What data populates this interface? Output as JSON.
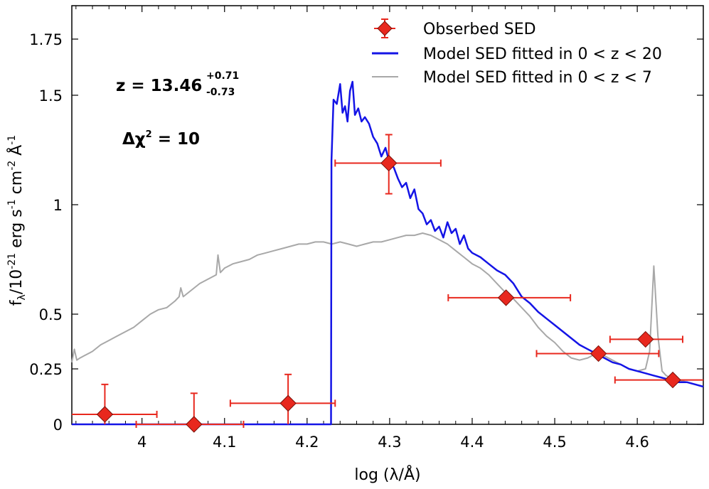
{
  "chart_data": {
    "type": "scatter",
    "xlabel": "log (λ/Å)",
    "ylabel": {
      "base": "f",
      "base_sub": "λ",
      "mid1": "/10",
      "exp1": "-21",
      "mid2": " erg s",
      "exp2": "-1",
      "mid3": " cm",
      "exp3": "-2",
      "mid4": " Å",
      "exp4": "-1"
    },
    "xlim": [
      3.915,
      4.68
    ],
    "ylim": [
      0,
      1.9
    ],
    "xticks": [
      4.0,
      4.1,
      4.2,
      4.3,
      4.4,
      4.5,
      4.6
    ],
    "xtick_labels": [
      "4",
      "4.1",
      "4.2",
      "4.3",
      "4.4",
      "4.5",
      "4.6"
    ],
    "yticks": [
      0,
      0.25,
      0.5,
      1,
      1.5,
      1.75
    ],
    "ytick_labels": [
      "0",
      "0.25",
      "0.5",
      "1",
      "1.5",
      "1.75"
    ],
    "y_scale_note": "nonlinear y axis: tick positions follow the printed labels",
    "yscale_anchor_values": [
      0,
      0.25,
      0.5,
      1,
      1.5,
      1.75
    ],
    "legend": {
      "placement": "top-right",
      "entries": [
        {
          "label": "Obserbed SED",
          "color": "#e8281e",
          "kind": "marker"
        },
        {
          "label": "Model SED fitted in 0 < z < 20",
          "color": "#1414e6",
          "kind": "line"
        },
        {
          "label": "Model SED fitted in 0 < z < 7",
          "color": "#a8a8a8",
          "kind": "line"
        }
      ]
    },
    "annotations": {
      "z_prefix": "z = 13.46",
      "z_plus": "+0.71",
      "z_minus": "-0.73",
      "dchi_prefix": "Δχ",
      "dchi_exp": "2",
      "dchi_value": " = 10"
    },
    "series": [
      {
        "name": "Obserbed SED",
        "color": "#e8281e",
        "points": [
          {
            "x": 3.955,
            "y": 0.045,
            "xerr": [
              0.07,
              0.063
            ],
            "yerr": [
              0.045,
              0.135
            ]
          },
          {
            "x": 4.063,
            "y": 0.0,
            "xerr": [
              0.07,
              0.06
            ],
            "yerr": [
              0.0,
              0.14
            ]
          },
          {
            "x": 4.177,
            "y": 0.095,
            "xerr": [
              0.07,
              0.057
            ],
            "yerr": [
              0.095,
              0.13
            ]
          },
          {
            "x": 4.299,
            "y": 1.19,
            "xerr": [
              0.065,
              0.063
            ],
            "yerr": [
              0.14,
              0.13
            ]
          },
          {
            "x": 4.441,
            "y": 0.575,
            "xerr": [
              0.07,
              0.078
            ],
            "yerr": [
              0,
              0
            ]
          },
          {
            "x": 4.553,
            "y": 0.32,
            "xerr": [
              0.075,
              0.073
            ],
            "yerr": [
              0,
              0
            ]
          },
          {
            "x": 4.61,
            "y": 0.385,
            "xerr": [
              0.043,
              0.045
            ],
            "yerr": [
              0,
              0
            ]
          },
          {
            "x": 4.643,
            "y": 0.2,
            "xerr": [
              0.07,
              0.04
            ],
            "yerr": [
              0,
              0
            ]
          }
        ]
      },
      {
        "name": "Model SED fitted in 0 < z < 20",
        "color": "#1414e6",
        "x": [
          3.915,
          4.229,
          4.2295,
          4.232,
          4.236,
          4.24,
          4.243,
          4.246,
          4.249,
          4.252,
          4.255,
          4.258,
          4.262,
          4.266,
          4.27,
          4.275,
          4.28,
          4.285,
          4.29,
          4.295,
          4.3,
          4.305,
          4.31,
          4.315,
          4.32,
          4.325,
          4.33,
          4.335,
          4.34,
          4.345,
          4.35,
          4.355,
          4.36,
          4.365,
          4.37,
          4.375,
          4.38,
          4.385,
          4.39,
          4.395,
          4.4,
          4.41,
          4.42,
          4.43,
          4.44,
          4.45,
          4.46,
          4.47,
          4.48,
          4.49,
          4.5,
          4.51,
          4.52,
          4.53,
          4.54,
          4.55,
          4.56,
          4.57,
          4.58,
          4.59,
          4.6,
          4.61,
          4.62,
          4.63,
          4.64,
          4.65,
          4.66,
          4.67,
          4.68
        ],
        "y": [
          0.0,
          0.0,
          1.2,
          1.48,
          1.46,
          1.55,
          1.42,
          1.45,
          1.38,
          1.52,
          1.56,
          1.41,
          1.44,
          1.38,
          1.4,
          1.37,
          1.31,
          1.28,
          1.22,
          1.26,
          1.19,
          1.17,
          1.12,
          1.08,
          1.1,
          1.03,
          1.07,
          0.98,
          0.96,
          0.91,
          0.93,
          0.88,
          0.9,
          0.85,
          0.92,
          0.87,
          0.89,
          0.82,
          0.86,
          0.8,
          0.78,
          0.76,
          0.73,
          0.7,
          0.68,
          0.64,
          0.58,
          0.55,
          0.51,
          0.48,
          0.45,
          0.42,
          0.39,
          0.36,
          0.34,
          0.32,
          0.3,
          0.28,
          0.27,
          0.25,
          0.24,
          0.23,
          0.22,
          0.21,
          0.2,
          0.19,
          0.19,
          0.18,
          0.17
        ]
      },
      {
        "name": "Model SED fitted in 0 < z < 7",
        "color": "#a8a8a8",
        "x": [
          3.915,
          3.918,
          3.921,
          3.925,
          3.93,
          3.94,
          3.95,
          3.96,
          3.97,
          3.98,
          3.99,
          4.0,
          4.01,
          4.02,
          4.03,
          4.04,
          4.045,
          4.047,
          4.05,
          4.06,
          4.07,
          4.08,
          4.09,
          4.092,
          4.095,
          4.1,
          4.11,
          4.12,
          4.13,
          4.14,
          4.15,
          4.16,
          4.17,
          4.18,
          4.19,
          4.2,
          4.21,
          4.22,
          4.23,
          4.24,
          4.25,
          4.26,
          4.27,
          4.28,
          4.29,
          4.3,
          4.31,
          4.32,
          4.33,
          4.34,
          4.35,
          4.36,
          4.37,
          4.38,
          4.39,
          4.4,
          4.41,
          4.42,
          4.43,
          4.44,
          4.45,
          4.46,
          4.47,
          4.48,
          4.49,
          4.5,
          4.51,
          4.52,
          4.53,
          4.54,
          4.55,
          4.56,
          4.57,
          4.58,
          4.59,
          4.6,
          4.61,
          4.615,
          4.62,
          4.625,
          4.63,
          4.635,
          4.64,
          4.65,
          4.66,
          4.67,
          4.68
        ],
        "y": [
          0.28,
          0.34,
          0.29,
          0.3,
          0.31,
          0.33,
          0.36,
          0.38,
          0.4,
          0.42,
          0.44,
          0.47,
          0.5,
          0.52,
          0.53,
          0.56,
          0.58,
          0.62,
          0.58,
          0.61,
          0.64,
          0.66,
          0.68,
          0.77,
          0.69,
          0.71,
          0.73,
          0.74,
          0.75,
          0.77,
          0.78,
          0.79,
          0.8,
          0.81,
          0.82,
          0.82,
          0.83,
          0.83,
          0.82,
          0.83,
          0.82,
          0.81,
          0.82,
          0.83,
          0.83,
          0.84,
          0.85,
          0.86,
          0.86,
          0.87,
          0.86,
          0.84,
          0.82,
          0.79,
          0.76,
          0.73,
          0.71,
          0.68,
          0.64,
          0.6,
          0.57,
          0.53,
          0.49,
          0.44,
          0.4,
          0.37,
          0.33,
          0.3,
          0.29,
          0.3,
          0.32,
          0.31,
          0.29,
          0.27,
          0.25,
          0.24,
          0.25,
          0.33,
          0.72,
          0.4,
          0.24,
          0.22,
          0.21,
          0.2,
          0.19,
          0.18,
          0.17
        ]
      }
    ]
  }
}
